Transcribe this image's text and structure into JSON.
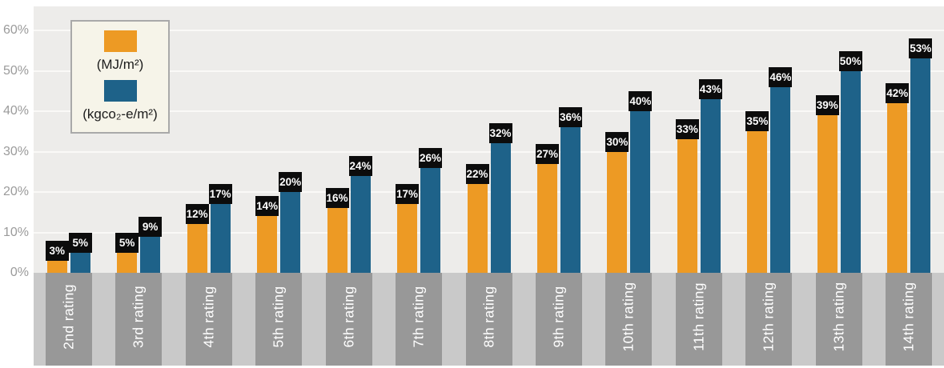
{
  "chart_data": {
    "type": "bar",
    "categories": [
      "2nd rating",
      "3rd rating",
      "4th rating",
      "5th rating",
      "6th rating",
      "7th rating",
      "8th rating",
      "9th rating",
      "10th rating",
      "11th rating",
      "12th rating",
      "13th rating",
      "14th rating"
    ],
    "series": [
      {
        "name": "(MJ/m²)",
        "color": "#ED9A24",
        "values": [
          3,
          5,
          12,
          14,
          16,
          17,
          22,
          27,
          30,
          33,
          35,
          39,
          42
        ],
        "labels": [
          "3%",
          "5%",
          "12%",
          "14%",
          "16%",
          "17%",
          "22%",
          "27%",
          "30%",
          "33%",
          "35%",
          "39%",
          "42%"
        ]
      },
      {
        "name": "(kgco₂-e/m²)",
        "color": "#1E6289",
        "values": [
          5,
          9,
          17,
          20,
          24,
          26,
          32,
          36,
          40,
          43,
          46,
          50,
          53
        ],
        "labels": [
          "5%",
          "9%",
          "17%",
          "20%",
          "24%",
          "26%",
          "32%",
          "36%",
          "40%",
          "43%",
          "46%",
          "50%",
          "53%"
        ]
      }
    ],
    "title": "",
    "xlabel": "",
    "ylabel": "",
    "ylim": [
      0,
      66
    ],
    "yticks": [
      "0%",
      "10%",
      "20%",
      "30%",
      "40%",
      "50%",
      "60%"
    ],
    "grid": true,
    "legend_position": "top-left",
    "bar_value_labels": "black boxes above bar tops"
  },
  "colors": {
    "plot_bg": "#EDECEA",
    "gridline": "#FAF9F7",
    "band_light": "#C9C9C9",
    "band_dark": "#989898",
    "value_box_bg": "#0C0C0C",
    "value_box_text": "#FFFFFF",
    "axis_tick_text": "#9B9B9B",
    "category_label_text": "#FFFFFF",
    "legend_bg": "#F6F4E9",
    "legend_border": "#A9A9A9",
    "legend_text": "#1C1C1C"
  }
}
